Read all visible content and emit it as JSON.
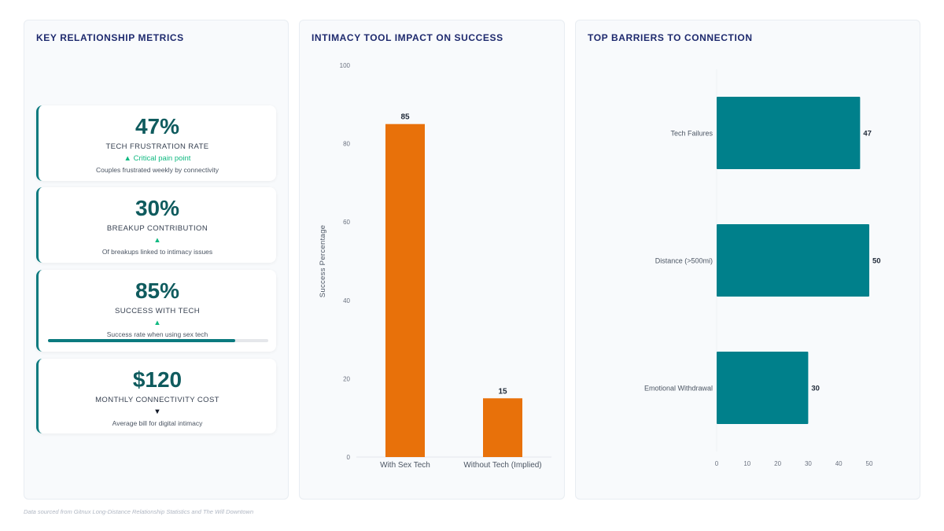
{
  "metrics_panel": {
    "title": "KEY RELATIONSHIP METRICS",
    "cards": [
      {
        "value": "47%",
        "label": "TECH FRUSTRATION RATE",
        "trend_symbol": "▲",
        "trend_text": "Critical pain point",
        "trend_direction": "up",
        "description": "Couples frustrated weekly by connectivity"
      },
      {
        "value": "30%",
        "label": "BREAKUP CONTRIBUTION",
        "trend_symbol": "▲",
        "trend_text": "",
        "trend_direction": "up",
        "description": "Of breakups linked to intimacy issues"
      },
      {
        "value": "85%",
        "label": "SUCCESS WITH TECH",
        "trend_symbol": "▲",
        "trend_text": "",
        "trend_direction": "up",
        "description": "Success rate when using sex tech",
        "progress": 0.85
      },
      {
        "value": "$120",
        "label": "MONTHLY CONNECTIVITY COST",
        "trend_symbol": "▼",
        "trend_text": "",
        "trend_direction": "down",
        "description": "Average bill for digital intimacy"
      }
    ]
  },
  "colors": {
    "title": "#1e2a6e",
    "metric_value": "#0f5b5e",
    "accent_teal": "#0b7a7f",
    "bar_orange": "#e8710a",
    "trend_up": "#10b981"
  },
  "chart_data": [
    {
      "type": "bar",
      "title": "INTIMACY TOOL IMPACT ON SUCCESS",
      "categories": [
        "With Sex Tech",
        "Without Tech (Implied)"
      ],
      "values": [
        85,
        15
      ],
      "ylabel": "Success Percentage",
      "xlabel": "",
      "ylim": [
        0,
        100
      ],
      "yticks": [
        0,
        20,
        40,
        60,
        80,
        100
      ],
      "color": "#e8710a",
      "grid": false
    },
    {
      "type": "bar",
      "orientation": "horizontal",
      "title": "TOP BARRIERS TO CONNECTION",
      "categories": [
        "Tech Failures",
        "Distance (>500mi)",
        "Emotional Withdrawal"
      ],
      "values": [
        47,
        50,
        30
      ],
      "xlim": [
        0,
        50
      ],
      "xticks": [
        0,
        10,
        20,
        30,
        40,
        50
      ],
      "color": "#00808b",
      "grid": false
    }
  ],
  "footer": {
    "source": "Data sourced from Gitnux Long-Distance Relationship Statistics and The Will Downtown"
  }
}
